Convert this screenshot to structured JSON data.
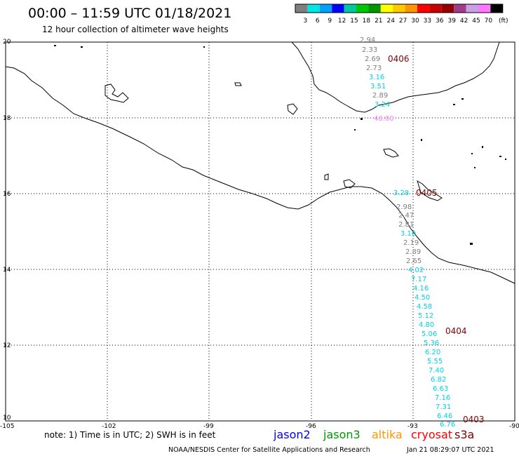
{
  "header": {
    "title": "00:00 – 11:59 UTC 01/18/2021",
    "subtitle": "12 hour collection of altimeter wave heights"
  },
  "colorbar": {
    "bins": [
      {
        "label": "3",
        "color": "#7f7f7f"
      },
      {
        "label": "6",
        "color": "#00e6e6"
      },
      {
        "label": "9",
        "color": "#00a0ff"
      },
      {
        "label": "12",
        "color": "#0000ff"
      },
      {
        "label": "15",
        "color": "#00c8a0"
      },
      {
        "label": "18",
        "color": "#00c800"
      },
      {
        "label": "21",
        "color": "#009600"
      },
      {
        "label": "24",
        "color": "#ffff00"
      },
      {
        "label": "27",
        "color": "#ffc800"
      },
      {
        "label": "30",
        "color": "#ff9600"
      },
      {
        "label": "33",
        "color": "#ff0000"
      },
      {
        "label": "36",
        "color": "#c80000"
      },
      {
        "label": "39",
        "color": "#960000"
      },
      {
        "label": "42",
        "color": "#a03c8c"
      },
      {
        "label": "45",
        "color": "#c8a0e6"
      },
      {
        "label": "70",
        "color": "#ff78ff"
      },
      {
        "label": "",
        "color": "#000000"
      }
    ],
    "unit": "(ft)"
  },
  "axes": {
    "lat_labels": [
      "20",
      "18",
      "16",
      "14",
      "12",
      "10"
    ],
    "lon_labels": [
      "-105",
      "-102",
      "-99",
      "-96",
      "-93",
      "-90"
    ]
  },
  "wave_heights": [
    {
      "text": "2.94",
      "color": "#7f7f7f"
    },
    {
      "text": "2.33",
      "color": "#7f7f7f"
    },
    {
      "text": "2.69",
      "color": "#7f7f7f"
    },
    {
      "text": "2.73",
      "color": "#7f7f7f"
    },
    {
      "text": "3.16",
      "color": "#00d2e6"
    },
    {
      "text": "3.51",
      "color": "#00d2e6"
    },
    {
      "text": "2.89",
      "color": "#7f7f7f"
    },
    {
      "text": "3.24",
      "color": "#00d2e6"
    },
    {
      "text": "46.00",
      "color": "#ff78ff"
    },
    {
      "text": "3.28",
      "color": "#00d2e6"
    },
    {
      "text": "2.98",
      "color": "#7f7f7f"
    },
    {
      "text": "2.47",
      "color": "#7f7f7f"
    },
    {
      "text": "2.81",
      "color": "#7f7f7f"
    },
    {
      "text": "3.10",
      "color": "#00d2e6"
    },
    {
      "text": "2.19",
      "color": "#7f7f7f"
    },
    {
      "text": "2.89",
      "color": "#7f7f7f"
    },
    {
      "text": "2.65",
      "color": "#7f7f7f"
    },
    {
      "text": "4.02",
      "color": "#00d2e6"
    },
    {
      "text": "7.17",
      "color": "#00d2e6"
    },
    {
      "text": "4.16",
      "color": "#00d2e6"
    },
    {
      "text": "4.50",
      "color": "#00d2e6"
    },
    {
      "text": "4.58",
      "color": "#00d2e6"
    },
    {
      "text": "5.12",
      "color": "#00d2e6"
    },
    {
      "text": "4.80",
      "color": "#00d2e6"
    },
    {
      "text": "5.06",
      "color": "#00d2e6"
    },
    {
      "text": "5.36",
      "color": "#00d2e6"
    },
    {
      "text": "6.20",
      "color": "#00d2e6"
    },
    {
      "text": "5.55",
      "color": "#00d2e6"
    },
    {
      "text": "7.40",
      "color": "#00d2e6"
    },
    {
      "text": "6.82",
      "color": "#00d2e6"
    },
    {
      "text": "6.63",
      "color": "#00d2e6"
    },
    {
      "text": "7.16",
      "color": "#00d2e6"
    },
    {
      "text": "7.31",
      "color": "#00d2e6"
    },
    {
      "text": "6.46",
      "color": "#00d2e6"
    },
    {
      "text": "6.76",
      "color": "#00d2e6"
    }
  ],
  "pass_times": [
    {
      "text": "0406",
      "color": "#800000"
    },
    {
      "text": "0405",
      "color": "#800000"
    },
    {
      "text": "0404",
      "color": "#800000"
    },
    {
      "text": "0403",
      "color": "#800000"
    }
  ],
  "footer": {
    "note": "note: 1) Time is in UTC; 2) SWH is in feet",
    "satellites": [
      {
        "name": "jason2",
        "color": "#0000ff"
      },
      {
        "name": "jason3",
        "color": "#009600"
      },
      {
        "name": "altika",
        "color": "#ff9600"
      },
      {
        "name": "cryosat",
        "color": "#ff0000"
      },
      {
        "name": "s3a",
        "color": "#800000"
      }
    ],
    "credit": "NOAA/NESDIS Center for Satellite Applications and Research",
    "generated": "Jan 21 08:29:07 UTC 2021"
  }
}
